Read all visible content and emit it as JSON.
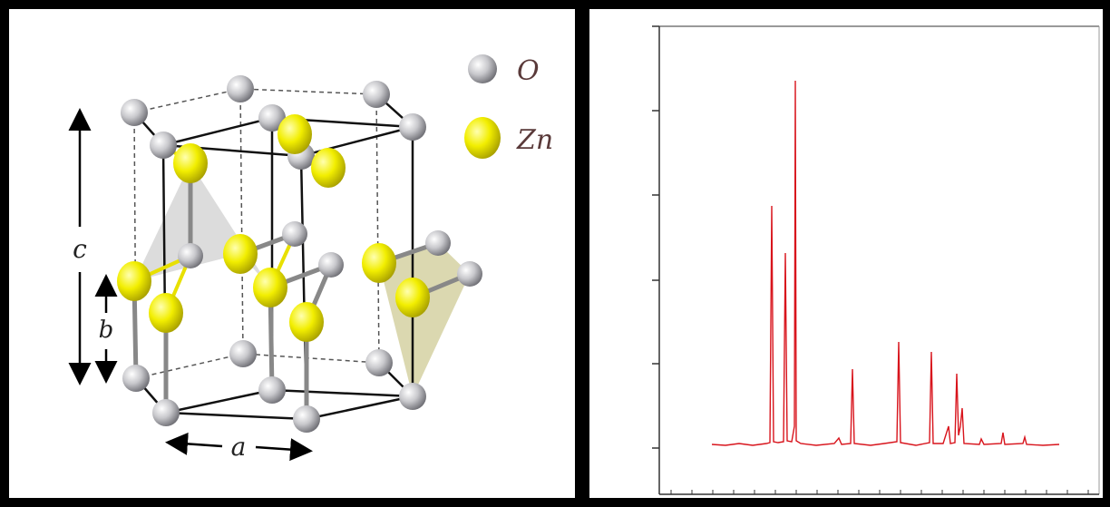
{
  "legend": [
    {
      "label": "O"
    },
    {
      "label": "Zn"
    }
  ],
  "axes_labels": {
    "c": "c",
    "b": "b",
    "a": "a"
  }
}
